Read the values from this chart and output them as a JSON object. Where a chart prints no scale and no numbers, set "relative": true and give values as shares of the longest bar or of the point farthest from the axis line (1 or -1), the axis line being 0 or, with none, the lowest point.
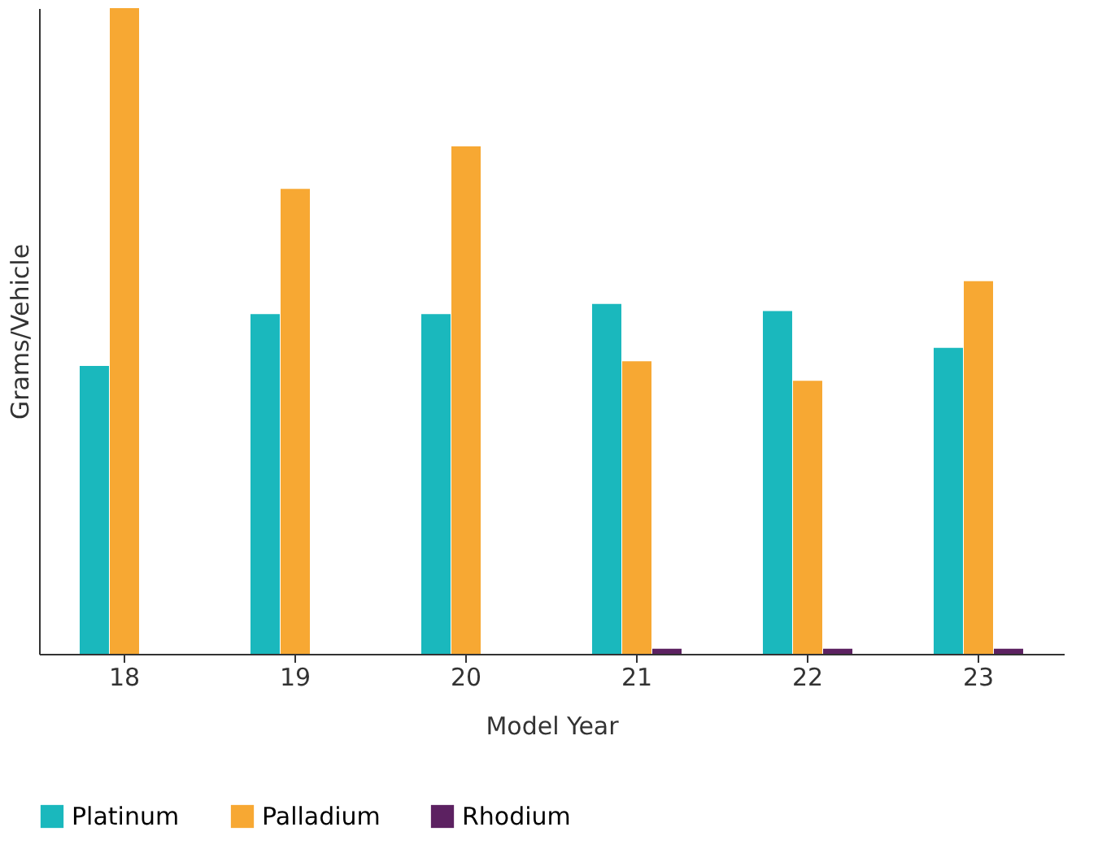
{
  "chart_data": {
    "type": "bar",
    "relative": true,
    "xlabel": "Model Year",
    "ylabel": "Grams/Vehicle",
    "categories": [
      "18",
      "19",
      "20",
      "21",
      "22",
      "23"
    ],
    "legend": "bottom",
    "grid": false,
    "series": [
      {
        "name": "Platinum",
        "color": "#1ab8bd",
        "values": [
          0.446,
          0.526,
          0.526,
          0.542,
          0.531,
          0.474
        ]
      },
      {
        "name": "Palladium",
        "color": "#f7a833",
        "values": [
          1,
          0.72,
          0.786,
          0.453,
          0.423,
          0.577
        ]
      },
      {
        "name": "Rhodium",
        "color": "#5c2161",
        "values": [
          null,
          null,
          null,
          0.008,
          0.008,
          0.008
        ]
      }
    ]
  }
}
